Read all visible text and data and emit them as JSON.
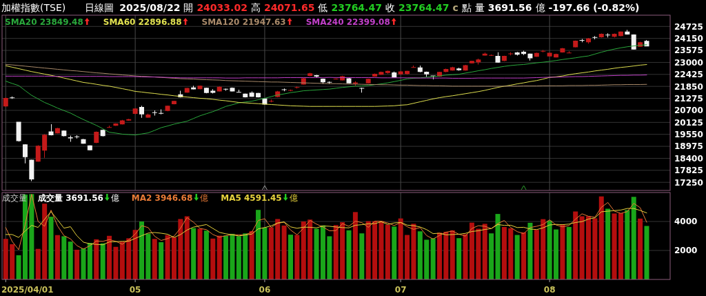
{
  "chart_data": [
    {
      "type": "candlestick",
      "title": "加權指數(TSE)",
      "subtitle": "日線圖",
      "annotations": [
        "2025/08/22",
        "開",
        "24033.02",
        "高",
        "24071.65",
        "低",
        "23764.47",
        "收",
        "23764.47",
        "c",
        "點",
        "量",
        "3691.56",
        "億",
        "-197.66 (-0.82%)"
      ],
      "categories": [
        null,
        null,
        null,
        null,
        null,
        null,
        null,
        null,
        null,
        null,
        null,
        null,
        null,
        null,
        null,
        null,
        null,
        null,
        null,
        null,
        "05",
        null,
        null,
        null,
        null,
        null,
        null,
        null,
        null,
        null,
        null,
        null,
        null,
        null,
        null,
        null,
        null,
        null,
        null,
        null,
        "06",
        null,
        null,
        null,
        null,
        null,
        null,
        null,
        null,
        null,
        null,
        null,
        null,
        null,
        null,
        null,
        null,
        null,
        null,
        null,
        null,
        "07",
        null,
        null,
        null,
        null,
        null,
        null,
        null,
        null,
        null,
        null,
        null,
        null,
        null,
        null,
        null,
        null,
        null,
        null,
        null,
        null,
        null,
        null,
        "08",
        null,
        null,
        null,
        null,
        null,
        null,
        null,
        null,
        null,
        null,
        null,
        null,
        null,
        null,
        null
      ],
      "ohlc": [
        [
          20890,
          21320,
          20870,
          21290
        ],
        [
          21310,
          21370,
          21250,
          21300
        ],
        [
          20150,
          20150,
          19200,
          19230
        ],
        [
          19070,
          19080,
          18160,
          18460
        ],
        [
          18330,
          18340,
          17310,
          17390
        ],
        [
          18240,
          19030,
          18230,
          19000
        ],
        [
          18770,
          19560,
          18420,
          19530
        ],
        [
          19690,
          20040,
          19500,
          19510
        ],
        [
          19600,
          19860,
          19590,
          19850
        ],
        [
          19730,
          19740,
          19450,
          19470
        ],
        [
          19410,
          19490,
          19190,
          19360
        ],
        [
          19440,
          19510,
          19350,
          19430
        ],
        [
          19320,
          19330,
          19090,
          19100
        ],
        [
          19020,
          19030,
          18780,
          18790
        ],
        [
          19140,
          19690,
          19130,
          19670
        ],
        [
          19760,
          19780,
          19450,
          19470
        ],
        [
          19870,
          19970,
          19860,
          19890
        ],
        [
          19960,
          20080,
          19950,
          20070
        ],
        [
          20030,
          20240,
          20020,
          20220
        ],
        [
          20210,
          20290,
          20200,
          20280
        ],
        [
          20530,
          20800,
          20520,
          20790
        ],
        [
          20860,
          20920,
          20340,
          20510
        ],
        [
          20350,
          20540,
          20340,
          20500
        ],
        [
          20600,
          20700,
          20450,
          20590
        ],
        [
          20570,
          20750,
          20510,
          20550
        ],
        [
          20670,
          20930,
          20660,
          20920
        ],
        [
          21000,
          21160,
          20990,
          21150
        ],
        [
          21470,
          21640,
          21320,
          21330
        ],
        [
          21550,
          21780,
          21540,
          21770
        ],
        [
          21800,
          21880,
          21700,
          21710
        ],
        [
          21720,
          21890,
          21710,
          21880
        ],
        [
          21780,
          21790,
          21520,
          21530
        ],
        [
          21640,
          21720,
          21510,
          21540
        ],
        [
          21610,
          21850,
          21600,
          21830
        ],
        [
          21720,
          21750,
          21640,
          21710
        ],
        [
          21780,
          21800,
          21600,
          21610
        ],
        [
          21570,
          21690,
          21550,
          21560
        ],
        [
          21500,
          21510,
          21320,
          21330
        ],
        [
          21550,
          21610,
          21340,
          21350
        ],
        [
          21530,
          21540,
          21320,
          21330
        ],
        [
          21270,
          21280,
          20970,
          20980
        ],
        [
          21130,
          21220,
          21090,
          21140
        ],
        [
          21340,
          21630,
          21330,
          21610
        ],
        [
          21700,
          21750,
          21620,
          21690
        ],
        [
          21650,
          21700,
          21620,
          21660
        ],
        [
          21790,
          21850,
          21750,
          21800
        ],
        [
          21940,
          22250,
          21930,
          22240
        ],
        [
          22350,
          22500,
          22340,
          22480
        ],
        [
          22390,
          22400,
          22280,
          22320
        ],
        [
          22220,
          22230,
          21970,
          22050
        ],
        [
          22060,
          22090,
          21970,
          22040
        ],
        [
          22200,
          22240,
          22180,
          22210
        ],
        [
          22140,
          22360,
          22130,
          22340
        ],
        [
          22240,
          22250,
          21990,
          22000
        ],
        [
          21970,
          22100,
          21880,
          22040
        ],
        [
          21760,
          21790,
          21550,
          21750
        ],
        [
          22000,
          22220,
          21990,
          22210
        ],
        [
          22320,
          22470,
          22310,
          22450
        ],
        [
          22410,
          22560,
          22400,
          22540
        ],
        [
          22490,
          22610,
          22460,
          22590
        ],
        [
          22520,
          22560,
          22270,
          22280
        ],
        [
          22430,
          22590,
          22420,
          22570
        ],
        [
          22440,
          22600,
          22420,
          22590
        ],
        [
          22750,
          22850,
          22750,
          22760
        ],
        [
          22760,
          22850,
          22530,
          22540
        ],
        [
          22550,
          22560,
          22300,
          22430
        ],
        [
          22360,
          22370,
          22190,
          22350
        ],
        [
          22320,
          22550,
          22310,
          22540
        ],
        [
          22540,
          22700,
          22530,
          22680
        ],
        [
          22610,
          22790,
          22600,
          22770
        ],
        [
          22710,
          22740,
          22600,
          22630
        ],
        [
          22610,
          22880,
          22600,
          22870
        ],
        [
          22960,
          23080,
          22950,
          23070
        ],
        [
          23010,
          23180,
          22900,
          23140
        ],
        [
          23330,
          23470,
          23320,
          23420
        ],
        [
          23330,
          23380,
          23310,
          23340
        ],
        [
          23310,
          23490,
          22980,
          22990
        ],
        [
          23070,
          23320,
          23060,
          23310
        ],
        [
          23410,
          23490,
          23340,
          23420
        ],
        [
          23480,
          23500,
          23330,
          23370
        ],
        [
          23510,
          23560,
          23350,
          23400
        ],
        [
          23420,
          23430,
          23090,
          23200
        ],
        [
          23270,
          23470,
          23260,
          23450
        ],
        [
          23530,
          23590,
          23490,
          23540
        ],
        [
          23290,
          23470,
          23280,
          23460
        ],
        [
          23240,
          23420,
          23230,
          23400
        ],
        [
          23480,
          23690,
          23470,
          23680
        ],
        [
          23450,
          23540,
          23450,
          23460
        ],
        [
          23730,
          24050,
          23720,
          24040
        ],
        [
          24060,
          24120,
          23970,
          24050
        ],
        [
          23970,
          24170,
          23900,
          24150
        ],
        [
          24200,
          24260,
          24110,
          24190
        ],
        [
          24210,
          24390,
          24190,
          24370
        ],
        [
          24320,
          24400,
          24200,
          24300
        ],
        [
          24230,
          24390,
          24200,
          24370
        ],
        [
          24260,
          24490,
          24250,
          24480
        ],
        [
          24480,
          24560,
          24330,
          24340
        ],
        [
          24340,
          24350,
          23610,
          23620
        ],
        [
          23750,
          23990,
          23740,
          23962.13
        ],
        [
          24033.02,
          24071.65,
          23764.47,
          23764.47
        ]
      ],
      "colors": [
        "#c41a1a",
        "#f2f2f2",
        "#f2f2f2",
        "#f2f2f2",
        "#f2f2f2",
        "#c41a1a",
        "#c41a1a",
        "#f2f2f2",
        "#c41a1a",
        "#f2f2f2",
        "#f2f2f2",
        "#f2f2f2",
        "#f2f2f2",
        "#f2f2f2",
        "#c41a1a",
        "#f2f2f2",
        "#c41a1a",
        "#c41a1a",
        "#c41a1a",
        "#c41a1a",
        "#c41a1a",
        "#f2f2f2",
        "#c41a1a",
        "#f2f2f2",
        "#f2f2f2",
        "#c41a1a",
        "#c41a1a",
        "#f2f2f2",
        "#c41a1a",
        "#f2f2f2",
        "#c41a1a",
        "#f2f2f2",
        "#f2f2f2",
        "#c41a1a",
        "#f2f2f2",
        "#f2f2f2",
        "#f2f2f2",
        "#f2f2f2",
        "#f2f2f2",
        "#f2f2f2",
        "#f2f2f2",
        "#c41a1a",
        "#c41a1a",
        "#f2f2f2",
        "#c41a1a",
        "#c41a1a",
        "#c41a1a",
        "#c41a1a",
        "#f2f2f2",
        "#f2f2f2",
        "#f2f2f2",
        "#c41a1a",
        "#c41a1a",
        "#f2f2f2",
        "#c41a1a",
        "#f2f2f2",
        "#c41a1a",
        "#c41a1a",
        "#c41a1a",
        "#c41a1a",
        "#f2f2f2",
        "#c41a1a",
        "#c41a1a",
        "#c41a1a",
        "#f2f2f2",
        "#f2f2f2",
        "#f2f2f2",
        "#c41a1a",
        "#c41a1a",
        "#c41a1a",
        "#f2f2f2",
        "#c41a1a",
        "#c41a1a",
        "#c41a1a",
        "#c41a1a",
        "#c41a1a",
        "#f2f2f2",
        "#c41a1a",
        "#c41a1a",
        "#f2f2f2",
        "#f2f2f2",
        "#f2f2f2",
        "#c41a1a",
        "#c41a1a",
        "#c41a1a",
        "#c41a1a",
        "#c41a1a",
        "#c41a1a",
        "#c41a1a",
        "#f2f2f2",
        "#c41a1a",
        "#f2f2f2",
        "#c41a1a",
        "#f2f2f2",
        "#c41a1a",
        "#c41a1a",
        "#f2f2f2",
        "#f2f2f2",
        "#c41a1a",
        "#f2f2f2"
      ],
      "series": [
        {
          "name": "SMA20 23849.48",
          "type": "line",
          "color": "#2aa83c",
          "values": [
            22100,
            21990,
            21890,
            21650,
            21420,
            21250,
            21080,
            20950,
            20810,
            20690,
            20570,
            20410,
            20260,
            20120,
            19980,
            19820,
            19650,
            19610,
            19560,
            19540,
            19520,
            19570,
            19620,
            19740,
            19870,
            19950,
            20040,
            20110,
            20180,
            20310,
            20440,
            20540,
            20640,
            20760,
            20890,
            20970,
            21060,
            21100,
            21140,
            21210,
            21280,
            21360,
            21440,
            21490,
            21550,
            21590,
            21640,
            21660,
            21680,
            21700,
            21720,
            21760,
            21800,
            21830,
            21860,
            21870,
            21890,
            21930,
            21970,
            22020,
            22080,
            22140,
            22210,
            22240,
            22260,
            22290,
            22320,
            22350,
            22390,
            22410,
            22430,
            22490,
            22540,
            22600,
            22650,
            22710,
            22760,
            22810,
            22850,
            22880,
            22900,
            22940,
            22980,
            23010,
            23050,
            23090,
            23140,
            23180,
            23220,
            23270,
            23310,
            23400,
            23490,
            23570,
            23640,
            23700,
            23750,
            23790,
            23820,
            23849.48
          ]
        },
        {
          "name": "SMA60 22896.88",
          "type": "line",
          "color": "#e0e050",
          "values": [
            22840,
            22770,
            22700,
            22630,
            22560,
            22500,
            22440,
            22380,
            22320,
            22250,
            22180,
            22110,
            22040,
            22000,
            21950,
            21900,
            21860,
            21800,
            21740,
            21680,
            21610,
            21580,
            21540,
            21510,
            21470,
            21440,
            21400,
            21370,
            21340,
            21310,
            21280,
            21260,
            21230,
            21190,
            21160,
            21120,
            21080,
            21060,
            21040,
            21020,
            21000,
            20980,
            20960,
            20940,
            20920,
            20910,
            20900,
            20890,
            20890,
            20890,
            20890,
            20890,
            20890,
            20890,
            20890,
            20890,
            20890,
            20890,
            20900,
            20910,
            20920,
            20950,
            20970,
            21040,
            21110,
            21180,
            21250,
            21310,
            21360,
            21400,
            21450,
            21500,
            21550,
            21600,
            21660,
            21730,
            21800,
            21860,
            21910,
            21970,
            22020,
            22080,
            22130,
            22200,
            22280,
            22310,
            22350,
            22410,
            22460,
            22500,
            22540,
            22590,
            22630,
            22670,
            22720,
            22760,
            22790,
            22830,
            22870,
            22896.88
          ]
        },
        {
          "name": "SMA120 21947.63",
          "type": "line",
          "color": "#a98a6a",
          "values": [
            22900,
            22880,
            22850,
            22820,
            22790,
            22760,
            22730,
            22700,
            22670,
            22640,
            22610,
            22590,
            22560,
            22530,
            22500,
            22480,
            22450,
            22430,
            22400,
            22380,
            22350,
            22330,
            22320,
            22300,
            22280,
            22260,
            22240,
            22220,
            22210,
            22200,
            22180,
            22170,
            22160,
            22150,
            22130,
            22120,
            22110,
            22100,
            22090,
            22080,
            22070,
            22060,
            22060,
            22050,
            22040,
            22030,
            22020,
            22010,
            22000,
            21990,
            21980,
            21980,
            21970,
            21960,
            21960,
            21950,
            21940,
            21940,
            21930,
            21930,
            21920,
            21910,
            21910,
            21900,
            21890,
            21890,
            21880,
            21880,
            21870,
            21860,
            21860,
            21860,
            21860,
            21860,
            21860,
            21860,
            21860,
            21860,
            21860,
            21860,
            21870,
            21870,
            21870,
            21880,
            21880,
            21880,
            21880,
            21890,
            21890,
            21890,
            21900,
            21900,
            21910,
            21920,
            21930,
            21930,
            21940,
            21940,
            21940,
            21947.63
          ]
        },
        {
          "name": "SMA240 22399.08",
          "type": "line",
          "color": "#c040c8",
          "values": [
            22340,
            22340,
            22340,
            22340,
            22340,
            22340,
            22340,
            22330,
            22330,
            22330,
            22330,
            22330,
            22330,
            22330,
            22330,
            22330,
            22320,
            22320,
            22320,
            22320,
            22320,
            22310,
            22300,
            22300,
            22290,
            22280,
            22270,
            22260,
            22260,
            22260,
            22260,
            22260,
            22260,
            22260,
            22250,
            22250,
            22250,
            22260,
            22260,
            22260,
            22260,
            22260,
            22260,
            22270,
            22270,
            22270,
            22270,
            22270,
            22270,
            22270,
            22280,
            22270,
            22270,
            22270,
            22270,
            22270,
            22270,
            22270,
            22260,
            22260,
            22260,
            22260,
            22260,
            22260,
            22250,
            22250,
            22250,
            22250,
            22250,
            22240,
            22240,
            22240,
            22240,
            22250,
            22250,
            22250,
            22250,
            22250,
            22250,
            22250,
            22250,
            22260,
            22270,
            22280,
            22290,
            22290,
            22300,
            22310,
            22320,
            22320,
            22330,
            22340,
            22350,
            22360,
            22370,
            22380,
            22380,
            22390,
            22390,
            22399.08
          ]
        }
      ],
      "ylim": [
        16860,
        25265
      ],
      "yticks": [
        17250,
        17825,
        18400,
        18975,
        19550,
        20125,
        20700,
        21275,
        21850,
        22425,
        23000,
        23575,
        24150,
        24725
      ],
      "grid": true,
      "legend": "top left",
      "tick_labels": "y"
    },
    {
      "type": "bar",
      "title": "成交量",
      "annotations": [
        "億",
        "億",
        "億",
        "2025/04/01"
      ],
      "categories": [
        null,
        null,
        null,
        null,
        null,
        null,
        null,
        null,
        null,
        null,
        null,
        null,
        null,
        null,
        null,
        null,
        null,
        null,
        null,
        null,
        "05",
        null,
        null,
        null,
        null,
        null,
        null,
        null,
        null,
        null,
        null,
        null,
        null,
        null,
        null,
        null,
        null,
        null,
        null,
        null,
        "06",
        null,
        null,
        null,
        null,
        null,
        null,
        null,
        null,
        null,
        null,
        null,
        null,
        null,
        null,
        null,
        null,
        null,
        null,
        null,
        null,
        "07",
        null,
        null,
        null,
        null,
        null,
        null,
        null,
        null,
        null,
        null,
        null,
        null,
        null,
        null,
        null,
        null,
        null,
        null,
        null,
        null,
        null,
        null,
        "08",
        null,
        null,
        null,
        null,
        null,
        null,
        null,
        null,
        null,
        null,
        null,
        null,
        null,
        null,
        null
      ],
      "series": [
        {
          "name": "成交量 3691.56",
          "values": [
            2800,
            2430,
            1670,
            5860,
            5890,
            2110,
            5230,
            4330,
            3060,
            2980,
            2610,
            2050,
            2140,
            2520,
            2770,
            2490,
            3010,
            2250,
            2610,
            2840,
            3420,
            4000,
            3150,
            2800,
            2570,
            3060,
            2910,
            4170,
            4360,
            3540,
            3500,
            3370,
            2820,
            3020,
            3020,
            3150,
            2980,
            3180,
            3340,
            4800,
            3580,
            3590,
            4170,
            3720,
            3090,
            3070,
            4000,
            4130,
            3500,
            3730,
            2980,
            3750,
            3950,
            3390,
            4650,
            3180,
            4020,
            4020,
            4020,
            3780,
            3650,
            4210,
            3070,
            3840,
            3320,
            2740,
            2840,
            3230,
            3290,
            3390,
            2850,
            3120,
            3920,
            3500,
            3840,
            3180,
            4520,
            3620,
            3530,
            3070,
            3250,
            3910,
            3420,
            4160,
            4060,
            3450,
            3810,
            3620,
            4690,
            4360,
            4360,
            4220,
            5730,
            4880,
            4550,
            4570,
            4790,
            5700,
            4200,
            3691.56
          ],
          "colors": [
            "#b40e0e",
            "#b40e0e",
            "#1aa61a",
            "#1aa61a",
            "#1aa61a",
            "#b40e0e",
            "#b40e0e",
            "#1aa61a",
            "#b40e0e",
            "#1aa61a",
            "#1aa61a",
            "#b40e0e",
            "#1aa61a",
            "#1aa61a",
            "#b40e0e",
            "#1aa61a",
            "#b40e0e",
            "#b40e0e",
            "#b40e0e",
            "#b40e0e",
            "#b40e0e",
            "#1aa61a",
            "#1aa61a",
            "#b40e0e",
            "#1aa61a",
            "#b40e0e",
            "#b40e0e",
            "#b40e0e",
            "#b40e0e",
            "#1aa61a",
            "#b40e0e",
            "#1aa61a",
            "#b40e0e",
            "#b40e0e",
            "#1aa61a",
            "#1aa61a",
            "#1aa61a",
            "#1aa61a",
            "#b40e0e",
            "#1aa61a",
            "#1aa61a",
            "#b40e0e",
            "#b40e0e",
            "#b40e0e",
            "#1aa61a",
            "#b40e0e",
            "#b40e0e",
            "#b40e0e",
            "#1aa61a",
            "#1aa61a",
            "#1aa61a",
            "#b40e0e",
            "#b40e0e",
            "#1aa61a",
            "#b40e0e",
            "#1aa61a",
            "#b40e0e",
            "#b40e0e",
            "#b40e0e",
            "#b40e0e",
            "#1aa61a",
            "#b40e0e",
            "#b40e0e",
            "#b40e0e",
            "#1aa61a",
            "#1aa61a",
            "#1aa61a",
            "#b40e0e",
            "#b40e0e",
            "#b40e0e",
            "#1aa61a",
            "#b40e0e",
            "#b40e0e",
            "#b40e0e",
            "#b40e0e",
            "#1aa61a",
            "#1aa61a",
            "#b40e0e",
            "#b40e0e",
            "#1aa61a",
            "#b40e0e",
            "#1aa61a",
            "#b40e0e",
            "#b40e0e",
            "#1aa61a",
            "#1aa61a",
            "#b40e0e",
            "#1aa61a",
            "#b40e0e",
            "#b40e0e",
            "#b40e0e",
            "#b40e0e",
            "#b40e0e",
            "#1aa61a",
            "#b40e0e",
            "#b40e0e",
            "#1aa61a",
            "#1aa61a",
            "#b40e0e",
            "#1aa61a"
          ]
        },
        {
          "name": "MA2 3946.68",
          "type": "line",
          "color": "#e87a36",
          "values": [
            3580,
            2620,
            2050,
            3770,
            5880,
            4000,
            3670,
            4780,
            3700,
            3020,
            2800,
            2330,
            2100,
            2330,
            2650,
            2630,
            2750,
            2630,
            2430,
            2730,
            3130,
            3710,
            3580,
            2980,
            2690,
            2820,
            2990,
            3540,
            4270,
            3950,
            3520,
            3440,
            3100,
            2920,
            3020,
            3090,
            3070,
            3080,
            3260,
            4070,
            4190,
            3590,
            3880,
            3950,
            3410,
            3080,
            3540,
            4070,
            3820,
            3620,
            3360,
            3370,
            3850,
            3670,
            4020,
            3920,
            3600,
            4020,
            4020,
            3900,
            3720,
            3930,
            3640,
            3460,
            3580,
            3030,
            2790,
            3040,
            3260,
            3340,
            3120,
            2990,
            3520,
            3710,
            3670,
            3510,
            3850,
            4070,
            3580,
            3300,
            3160,
            3580,
            3670,
            3790,
            4110,
            3760,
            3630,
            3720,
            4160,
            4530,
            4360,
            4290,
            4980,
            5310,
            4720,
            4560,
            4680,
            5250,
            4950,
            3946.68
          ]
        },
        {
          "name": "MA5 4591.45",
          "type": "line",
          "color": "#e6d13c",
          "values": [
            3100,
            3100,
            2900,
            3340,
            3730,
            3590,
            4150,
            4680,
            4120,
            3540,
            3640,
            3010,
            2570,
            2460,
            2420,
            2390,
            2590,
            2610,
            2630,
            2640,
            2830,
            3020,
            3200,
            3240,
            3190,
            3120,
            2900,
            3100,
            3410,
            3610,
            3700,
            3790,
            3520,
            3250,
            3150,
            3080,
            3000,
            3070,
            3130,
            3490,
            3580,
            3700,
            3900,
            3970,
            3630,
            3530,
            3610,
            3600,
            3560,
            3690,
            3670,
            3620,
            3580,
            3560,
            3740,
            3780,
            3840,
            3850,
            3980,
            3800,
            3900,
            3940,
            3750,
            3710,
            3620,
            3440,
            3160,
            3190,
            3080,
            3100,
            3120,
            3180,
            3310,
            3360,
            3450,
            3510,
            3790,
            3730,
            3740,
            3580,
            3600,
            3480,
            3440,
            3560,
            3760,
            3800,
            3780,
            3820,
            3930,
            3990,
            4170,
            4250,
            4670,
            4710,
            4750,
            4790,
            4900,
            4900,
            4760,
            4591.45
          ]
        }
      ],
      "ylim": [
        0,
        6000
      ],
      "yticks": [
        2000,
        4000
      ],
      "grid": true,
      "legend": "top left"
    }
  ]
}
